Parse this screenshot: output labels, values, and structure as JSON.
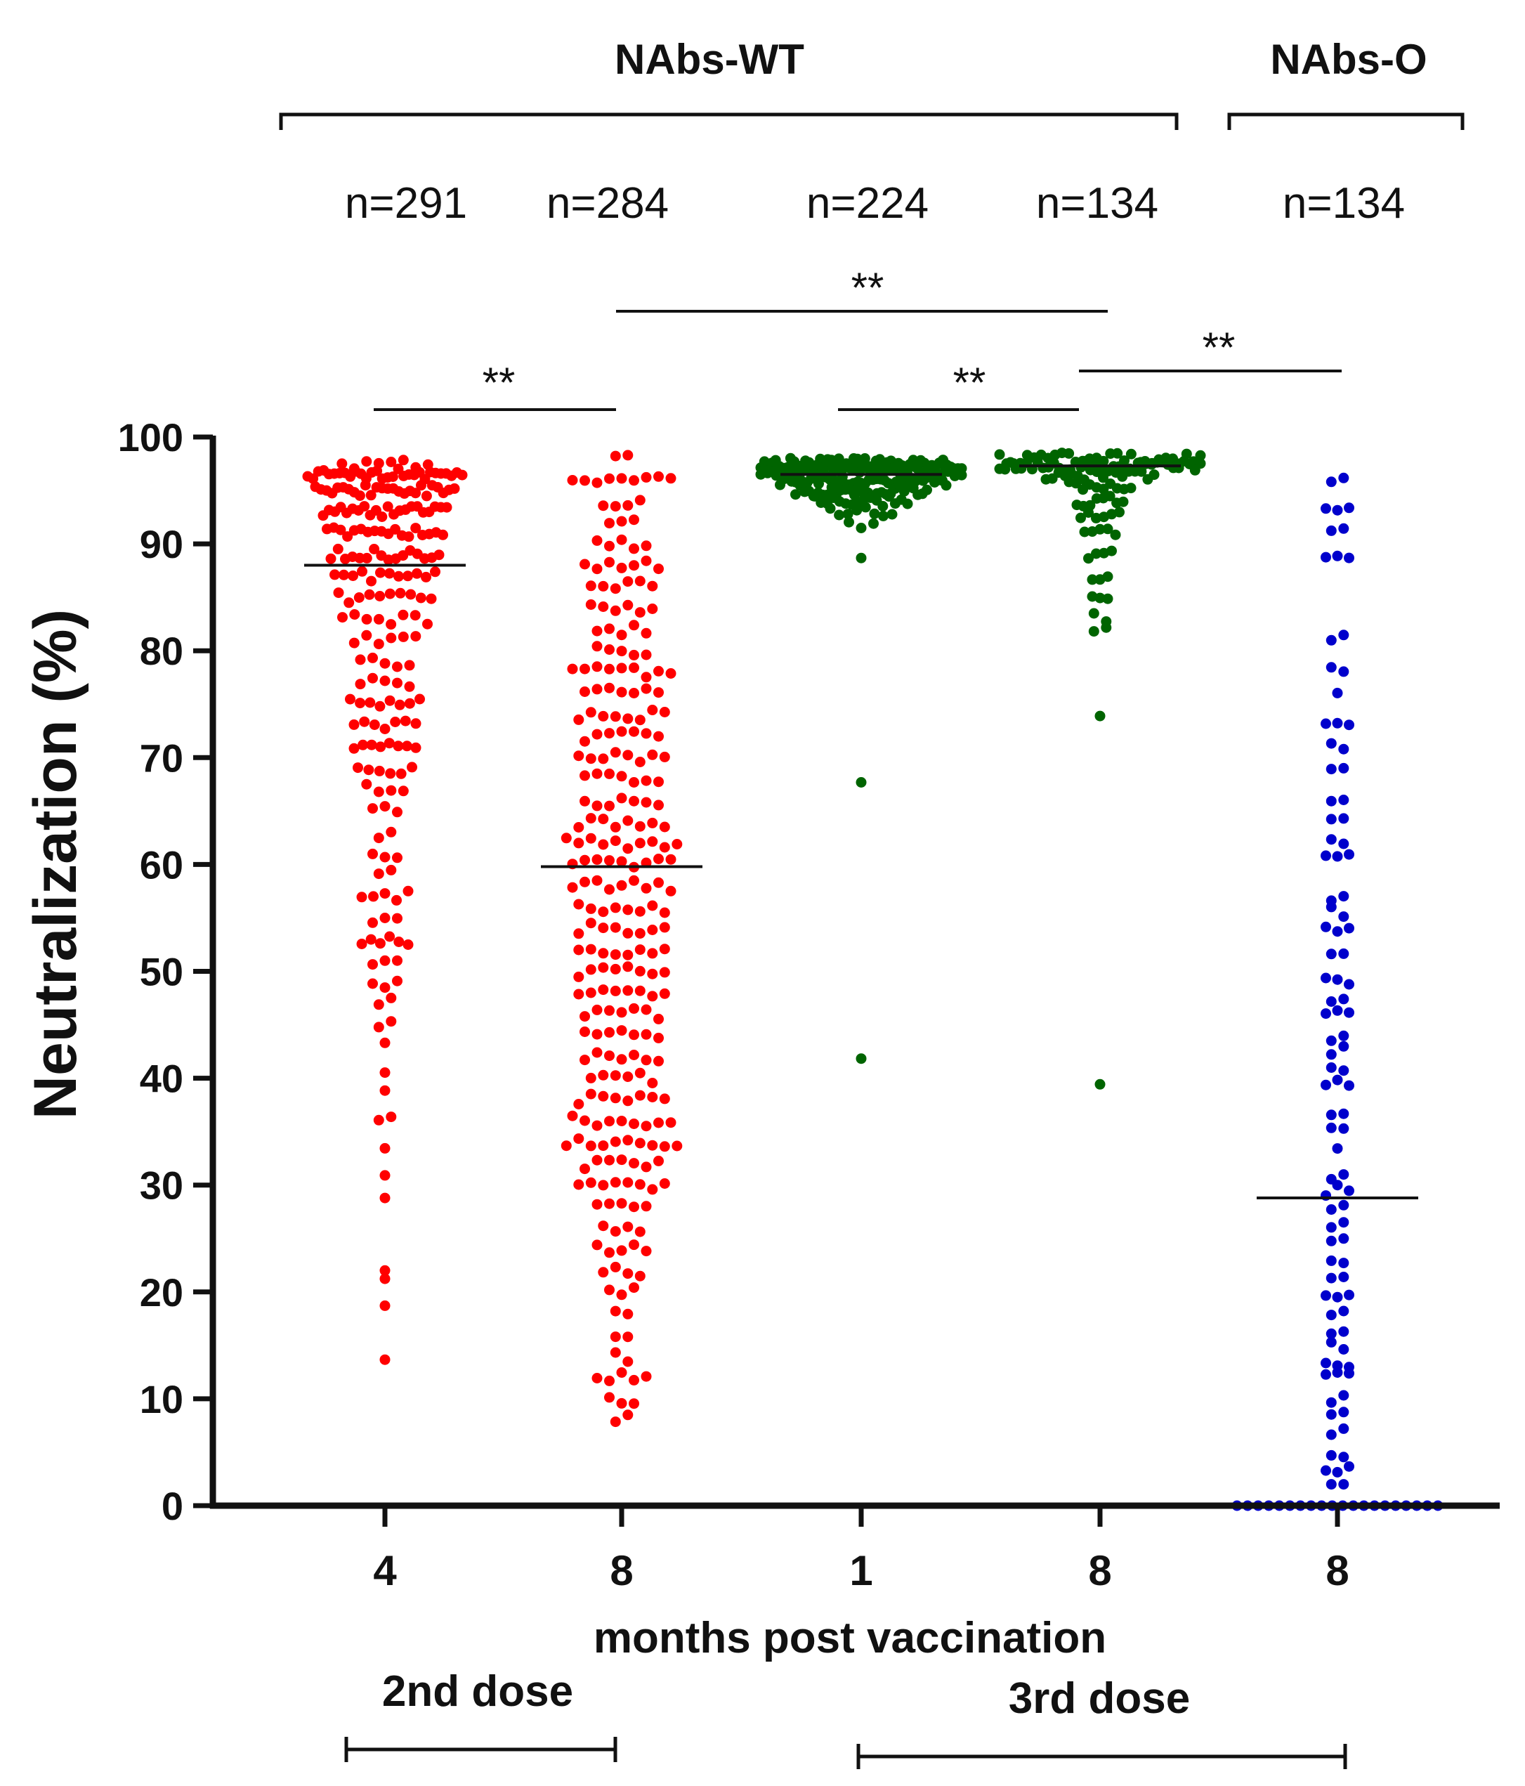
{
  "chart_data": {
    "type": "scatter",
    "subtype": "dot-plot",
    "ylabel": "Neutralization (%)",
    "xlabel": "months post vaccination",
    "ylim": [
      0,
      100
    ],
    "yticks": [
      0,
      10,
      20,
      30,
      40,
      50,
      60,
      70,
      80,
      90,
      100
    ],
    "group_headers": [
      {
        "label": "NAbs-WT",
        "covers": [
          0,
          1,
          2,
          3
        ]
      },
      {
        "label": "NAbs-O",
        "covers": [
          4,
          4
        ]
      }
    ],
    "dose_labels": [
      {
        "label": "2nd dose",
        "covers": [
          0,
          1
        ]
      },
      {
        "label": "3rd dose",
        "covers": [
          2,
          4
        ]
      }
    ],
    "significance": [
      {
        "label": "**",
        "from": 0,
        "to": 1
      },
      {
        "label": "**",
        "from": 1,
        "to": 3
      },
      {
        "label": "**",
        "from": 2,
        "to": 3
      },
      {
        "label": "**",
        "from": 3,
        "to": 4
      }
    ],
    "series": [
      {
        "name": "NAbs-WT 2nd dose 4 months",
        "x_label": "4",
        "n_label": "n=291",
        "color": "#ff0000",
        "median": 88.0,
        "dist": [
          [
            97.5,
            8,
            1.3
          ],
          [
            96.5,
            30,
            1.0
          ],
          [
            95,
            26,
            0.9
          ],
          [
            93,
            22,
            0.8
          ],
          [
            91,
            18,
            0.75
          ],
          [
            89,
            16,
            0.7
          ],
          [
            87,
            12,
            0.65
          ],
          [
            85,
            10,
            0.6
          ],
          [
            83,
            8,
            0.55
          ],
          [
            81,
            6,
            0.5
          ],
          [
            79,
            5,
            0.45
          ],
          [
            77,
            5,
            0.45
          ],
          [
            75,
            8,
            0.45
          ],
          [
            73,
            7,
            0.4
          ],
          [
            71,
            8,
            0.4
          ],
          [
            69,
            6,
            0.35
          ],
          [
            67,
            4,
            0.3
          ],
          [
            65,
            3,
            0.3
          ],
          [
            63,
            2,
            0.25
          ],
          [
            61,
            3,
            0.25
          ],
          [
            59,
            2,
            0.25
          ],
          [
            57,
            5,
            0.3
          ],
          [
            55,
            3,
            0.25
          ],
          [
            53,
            6,
            0.3
          ],
          [
            51,
            3,
            0.25
          ],
          [
            49,
            3,
            0.2
          ],
          [
            47,
            2,
            0.2
          ],
          [
            45,
            2,
            0.2
          ],
          [
            43,
            1,
            0.1
          ],
          [
            41,
            1,
            0.1
          ],
          [
            39,
            1,
            0.1
          ],
          [
            36,
            2,
            0.15
          ],
          [
            33,
            1,
            0.1
          ],
          [
            31,
            1,
            0.1
          ],
          [
            29,
            1,
            0.1
          ],
          [
            22,
            1,
            0.1
          ],
          [
            21,
            1,
            0.1
          ],
          [
            18.5,
            1,
            0.1
          ],
          [
            14,
            1,
            0.1
          ]
        ]
      },
      {
        "name": "NAbs-WT 2nd dose 8 months",
        "x_label": "8",
        "n_label": "n=284",
        "color": "#ff0000",
        "median": 59.8,
        "dist": [
          [
            98,
            2,
            0.2
          ],
          [
            96,
            9,
            0.7
          ],
          [
            94,
            4,
            0.4
          ],
          [
            92,
            3,
            0.35
          ],
          [
            90,
            5,
            0.45
          ],
          [
            88,
            7,
            0.55
          ],
          [
            86,
            6,
            0.5
          ],
          [
            84,
            6,
            0.5
          ],
          [
            82,
            5,
            0.5
          ],
          [
            80,
            5,
            0.55
          ],
          [
            78,
            9,
            0.8
          ],
          [
            76,
            7,
            0.8
          ],
          [
            74,
            8,
            0.8
          ],
          [
            72,
            7,
            0.7
          ],
          [
            70,
            8,
            0.7
          ],
          [
            68,
            7,
            0.7
          ],
          [
            66,
            7,
            0.7
          ],
          [
            64,
            8,
            0.7
          ],
          [
            62,
            10,
            0.85
          ],
          [
            60,
            9,
            0.8
          ],
          [
            58,
            9,
            0.75
          ],
          [
            56,
            8,
            0.7
          ],
          [
            54,
            8,
            0.7
          ],
          [
            52,
            8,
            0.7
          ],
          [
            50,
            8,
            0.65
          ],
          [
            48,
            8,
            0.65
          ],
          [
            46,
            7,
            0.6
          ],
          [
            44,
            7,
            0.6
          ],
          [
            42,
            7,
            0.6
          ],
          [
            40,
            6,
            0.55
          ],
          [
            38,
            8,
            0.65
          ],
          [
            36,
            9,
            0.7
          ],
          [
            34,
            10,
            0.8
          ],
          [
            32,
            7,
            0.6
          ],
          [
            30,
            8,
            0.7
          ],
          [
            28,
            5,
            0.5
          ],
          [
            26,
            4,
            0.4
          ],
          [
            24,
            5,
            0.45
          ],
          [
            22,
            4,
            0.4
          ],
          [
            20,
            3,
            0.3
          ],
          [
            18,
            2,
            0.3
          ],
          [
            16,
            2,
            0.3
          ],
          [
            14,
            2,
            0.25
          ],
          [
            12,
            5,
            0.45
          ],
          [
            10,
            3,
            0.3
          ],
          [
            8,
            2,
            0.2
          ]
        ]
      },
      {
        "name": "NAbs-WT 3rd dose 1 month",
        "x_label": "1",
        "n_label": "n=224",
        "color": "#006400",
        "median": 96.5,
        "dist": [
          [
            97.5,
            55,
            1.3
          ],
          [
            96.8,
            60,
            1.3
          ],
          [
            96,
            45,
            1.1
          ],
          [
            95,
            30,
            0.85
          ],
          [
            94,
            16,
            0.6
          ],
          [
            93,
            8,
            0.4
          ],
          [
            92,
            3,
            0.2
          ],
          [
            88.5,
            1,
            0.05
          ],
          [
            67.5,
            1,
            0.05
          ],
          [
            42,
            1,
            0.05
          ]
        ]
      },
      {
        "name": "NAbs-WT 3rd dose 8 months",
        "x_label": "8",
        "n_label": "n=134",
        "color": "#006400",
        "median": 97.3,
        "dist": [
          [
            98,
            30,
            1.3
          ],
          [
            97.3,
            38,
            1.3
          ],
          [
            96.5,
            18,
            0.7
          ],
          [
            95.5,
            10,
            0.4
          ],
          [
            94,
            8,
            0.3
          ],
          [
            92.5,
            6,
            0.25
          ],
          [
            91,
            5,
            0.2
          ],
          [
            89,
            4,
            0.15
          ],
          [
            87,
            3,
            0.1
          ],
          [
            85,
            3,
            0.1
          ],
          [
            83,
            2,
            0.1
          ],
          [
            82,
            2,
            0.1
          ],
          [
            74,
            1,
            0.05
          ],
          [
            39,
            1,
            0.05
          ]
        ]
      },
      {
        "name": "NAbs-O 3rd dose 8 months",
        "x_label": "8",
        "n_label": "n=134",
        "color": "#0000cc",
        "median": 28.8,
        "dist": [
          [
            96,
            2,
            0.1
          ],
          [
            93,
            3,
            0.15
          ],
          [
            91.5,
            2,
            0.15
          ],
          [
            89,
            3,
            0.15
          ],
          [
            81.5,
            2,
            0.1
          ],
          [
            78,
            2,
            0.1
          ],
          [
            76,
            1,
            0.05
          ],
          [
            73,
            3,
            0.15
          ],
          [
            71,
            2,
            0.1
          ],
          [
            69,
            2,
            0.1
          ],
          [
            66,
            2,
            0.1
          ],
          [
            64.5,
            2,
            0.1
          ],
          [
            62,
            2,
            0.1
          ],
          [
            60.5,
            3,
            0.15
          ],
          [
            57,
            2,
            0.1
          ],
          [
            55.5,
            2,
            0.1
          ],
          [
            54,
            3,
            0.15
          ],
          [
            52,
            2,
            0.1
          ],
          [
            49,
            3,
            0.15
          ],
          [
            47.5,
            2,
            0.1
          ],
          [
            46,
            3,
            0.15
          ],
          [
            44,
            2,
            0.1
          ],
          [
            42.5,
            2,
            0.1
          ],
          [
            41,
            2,
            0.1
          ],
          [
            39.5,
            3,
            0.15
          ],
          [
            37,
            2,
            0.1
          ],
          [
            35,
            2,
            0.1
          ],
          [
            33,
            1,
            0.05
          ],
          [
            31,
            2,
            0.1
          ],
          [
            29.5,
            3,
            0.15
          ],
          [
            28,
            2,
            0.1
          ],
          [
            26,
            2,
            0.1
          ],
          [
            25,
            2,
            0.1
          ],
          [
            23,
            2,
            0.1
          ],
          [
            21,
            2,
            0.1
          ],
          [
            20,
            3,
            0.15
          ],
          [
            18,
            2,
            0.1
          ],
          [
            16.5,
            2,
            0.1
          ],
          [
            15,
            2,
            0.1
          ],
          [
            13,
            3,
            0.15
          ],
          [
            12,
            3,
            0.15
          ],
          [
            10,
            2,
            0.1
          ],
          [
            8.5,
            2,
            0.1
          ],
          [
            7,
            2,
            0.1
          ],
          [
            5,
            2,
            0.15
          ],
          [
            3.5,
            3,
            0.15
          ],
          [
            2,
            2,
            0.1
          ],
          [
            0,
            20,
            1.3
          ]
        ]
      }
    ]
  }
}
